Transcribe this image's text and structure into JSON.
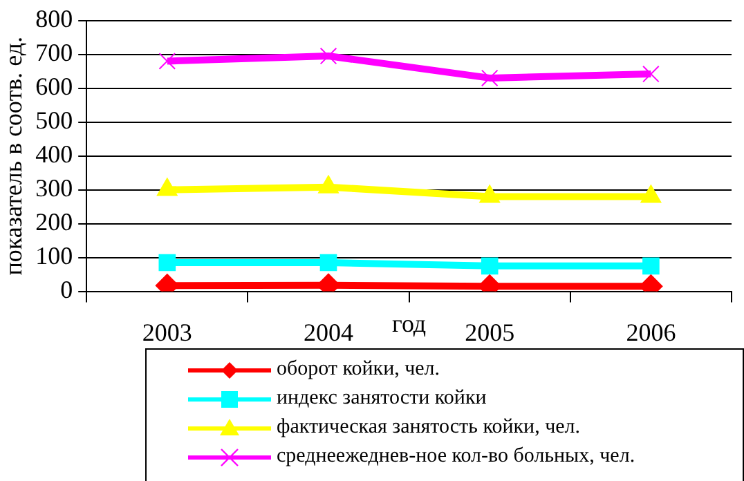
{
  "chart_data": {
    "type": "line",
    "xlabel": "год",
    "ylabel": "показатель в соотв. ед.",
    "categories": [
      "2003",
      "2004",
      "2005",
      "2006"
    ],
    "ylim": [
      0,
      800
    ],
    "yticks": [
      0,
      100,
      200,
      300,
      400,
      500,
      600,
      700,
      800
    ],
    "grid": "y",
    "legend": "bottom",
    "line_style": "solid",
    "series": [
      {
        "name": "оборот койки, чел.",
        "color": "#ff0000",
        "marker": "diamond",
        "values": [
          17,
          18,
          15,
          15
        ]
      },
      {
        "name": "индекс занятости койки",
        "color": "#00ffff",
        "marker": "square",
        "values": [
          85,
          85,
          75,
          75
        ]
      },
      {
        "name": "фактическая занятость койки, чел.",
        "color": "#ffff00",
        "marker": "triangle",
        "values": [
          300,
          308,
          280,
          280
        ]
      },
      {
        "name": "среднеежеднев-ное кол-во больных, чел.",
        "color": "#ff00ff",
        "marker": "cross",
        "values": [
          680,
          695,
          630,
          642
        ]
      }
    ]
  }
}
